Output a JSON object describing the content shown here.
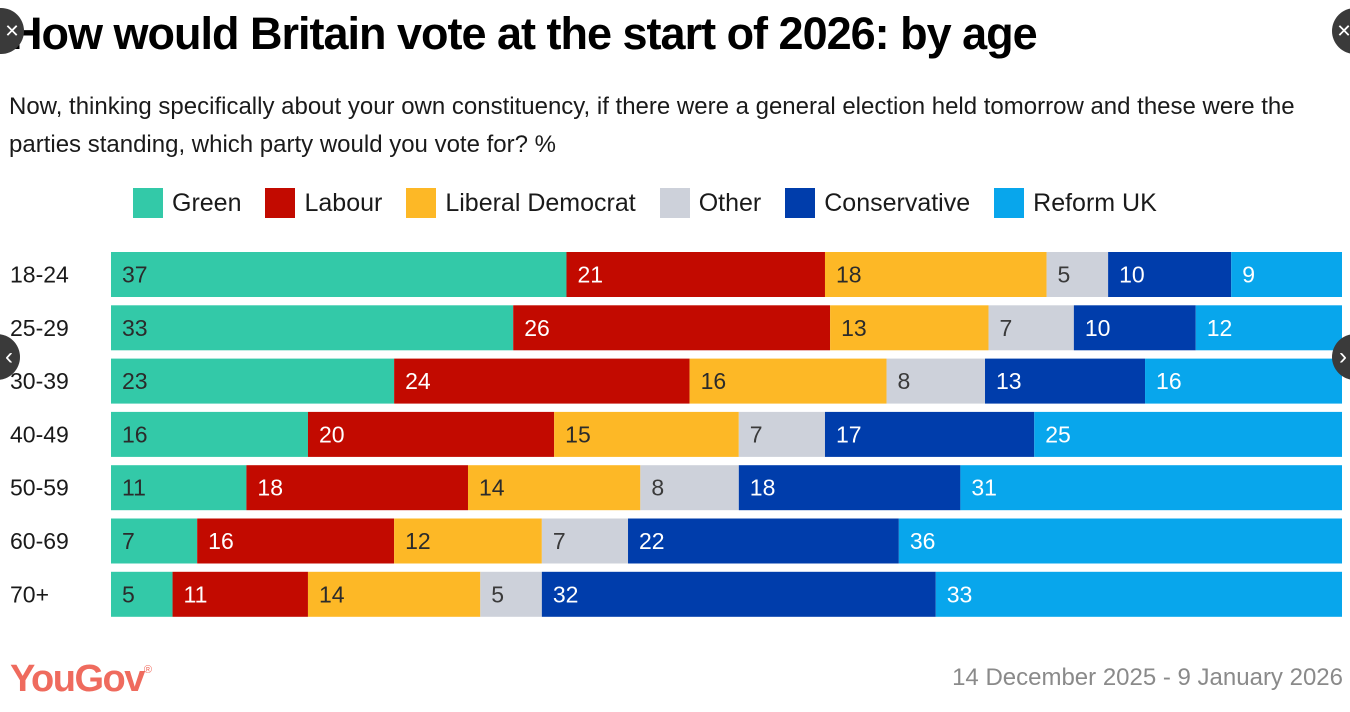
{
  "header": {
    "title": "How would Britain vote at the start of 2026: by age",
    "subtitle": "Now, thinking specifically about your own constituency, if there were a general election held tomorrow and these were the parties standing, which party would you vote for? %"
  },
  "footer": {
    "brand": "YouGov",
    "brand_mark": "®",
    "date_range": "14 December 2025 - 9 January 2026"
  },
  "overlay_controls": {
    "close_left": "✕",
    "close_right": "✕",
    "prev": "‹",
    "next": "›"
  },
  "chart_data": {
    "type": "bar",
    "orientation": "horizontal",
    "stacked": true,
    "title": "How would Britain vote at the start of 2026: by age",
    "xlabel": "",
    "ylabel": "",
    "unit": "%",
    "grid": false,
    "legend_position": "top",
    "categories": [
      "18-24",
      "25-29",
      "30-39",
      "40-49",
      "50-59",
      "60-69",
      "70+"
    ],
    "series": [
      {
        "name": "Green",
        "color": "#33c9a8",
        "label_color": "#2b2b2b",
        "values": [
          37,
          33,
          23,
          16,
          11,
          7,
          5
        ]
      },
      {
        "name": "Labour",
        "color": "#c20a00",
        "label_color": "#ffffff",
        "values": [
          21,
          26,
          24,
          20,
          18,
          16,
          11
        ]
      },
      {
        "name": "Liberal Democrat",
        "color": "#fdb826",
        "label_color": "#2b2b2b",
        "values": [
          18,
          13,
          16,
          15,
          14,
          12,
          14
        ]
      },
      {
        "name": "Other",
        "color": "#cdd1da",
        "label_color": "#3a3a3a",
        "values": [
          5,
          7,
          8,
          7,
          8,
          7,
          5
        ]
      },
      {
        "name": "Conservative",
        "color": "#003dab",
        "label_color": "#ffffff",
        "values": [
          10,
          10,
          13,
          17,
          18,
          22,
          32
        ]
      },
      {
        "name": "Reform UK",
        "color": "#08a6ec",
        "label_color": "#ffffff",
        "values": [
          9,
          12,
          16,
          25,
          31,
          36,
          33
        ]
      }
    ]
  }
}
